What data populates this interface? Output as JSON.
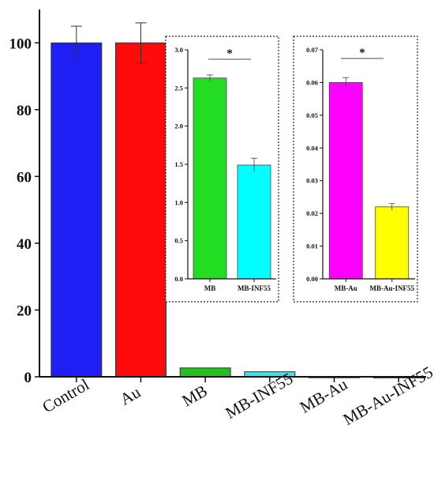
{
  "chart_data": [
    {
      "type": "bar",
      "categories": [
        "Control",
        "Au",
        "MB",
        "MB-INF55",
        "MB-Au",
        "MB-Au-INF55"
      ],
      "values": [
        100,
        100,
        2.65,
        1.5,
        0.06,
        0.022
      ],
      "errors": [
        5,
        6,
        0,
        0,
        0,
        0
      ],
      "colors": [
        "#1f1ff5",
        "#ff0a0a",
        "#22c022",
        "#33e8f0",
        "#c020e0",
        "#e8e030"
      ],
      "yticks": [
        "0",
        "20",
        "40",
        "60",
        "80",
        "100"
      ],
      "ylim": [
        0,
        110
      ]
    },
    {
      "type": "bar",
      "categories": [
        "MB",
        "MB-INF55"
      ],
      "values": [
        2.63,
        1.49
      ],
      "errors": [
        0.04,
        0.09
      ],
      "colors": [
        "#22dd22",
        "#00ffff"
      ],
      "yticks": [
        "0.0",
        "0.5",
        "1.0",
        "1.5",
        "2.0",
        "2.5",
        "3.0"
      ],
      "ylim": [
        0,
        3.0
      ],
      "annotation": "*"
    },
    {
      "type": "bar",
      "categories": [
        "MB-Au",
        "MB-Au-INF55"
      ],
      "values": [
        0.06,
        0.022
      ],
      "errors": [
        0.0015,
        0.001
      ],
      "colors": [
        "#ff00ff",
        "#ffff00"
      ],
      "yticks": [
        "0.00",
        "0.01",
        "0.02",
        "0.03",
        "0.04",
        "0.05",
        "0.06",
        "0.07"
      ],
      "ylim": [
        0,
        0.07
      ],
      "annotation": "*"
    }
  ]
}
